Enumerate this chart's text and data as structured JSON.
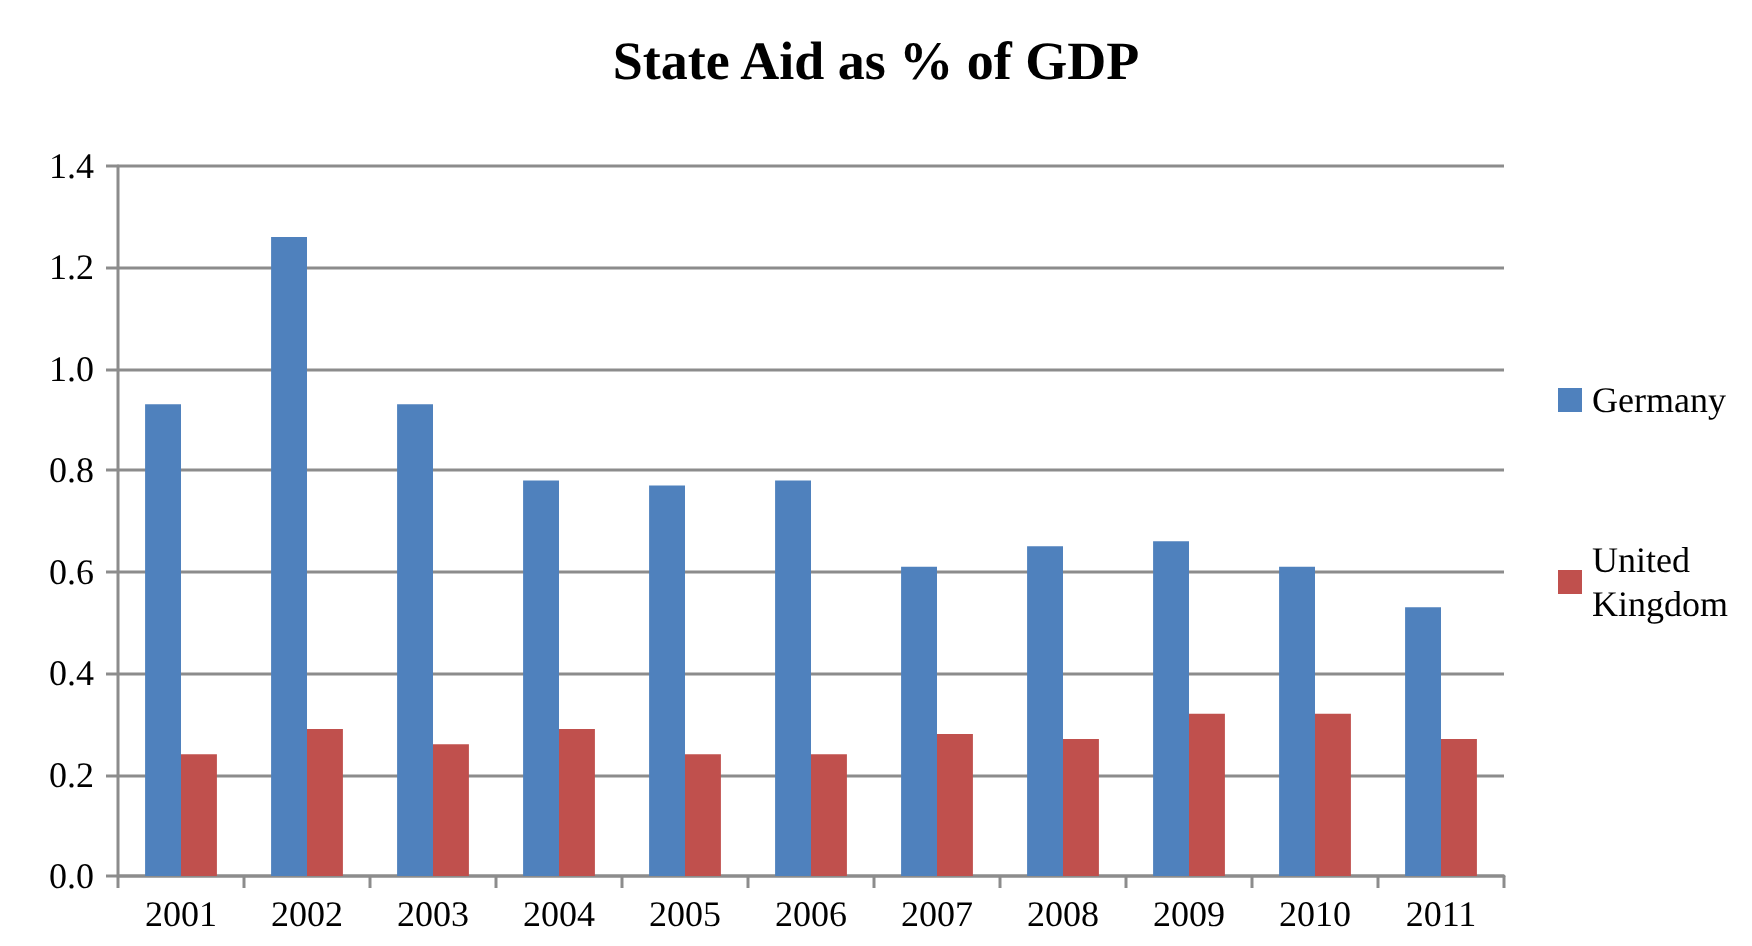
{
  "chart_data": {
    "type": "bar",
    "title": "State Aid as % of GDP",
    "categories": [
      "2001",
      "2002",
      "2003",
      "2004",
      "2005",
      "2006",
      "2007",
      "2008",
      "2009",
      "2010",
      "2011"
    ],
    "series": [
      {
        "name": "Germany",
        "color": "#4f81bd",
        "values": [
          0.93,
          1.26,
          0.93,
          0.78,
          0.77,
          0.78,
          0.61,
          0.65,
          0.66,
          0.61,
          0.53
        ]
      },
      {
        "name": "United Kingdom",
        "color": "#c0504d",
        "values": [
          0.24,
          0.29,
          0.26,
          0.29,
          0.24,
          0.24,
          0.28,
          0.27,
          0.32,
          0.32,
          0.27
        ]
      }
    ],
    "ylim": [
      0,
      1.4
    ],
    "yticks": [
      {
        "value": 0,
        "label": "0.0"
      },
      0.2,
      0.4,
      0.6,
      0.8,
      {
        "value": 1,
        "label": "1.0"
      },
      1.2,
      1.4
    ],
    "grid": "y",
    "legend": "right"
  }
}
